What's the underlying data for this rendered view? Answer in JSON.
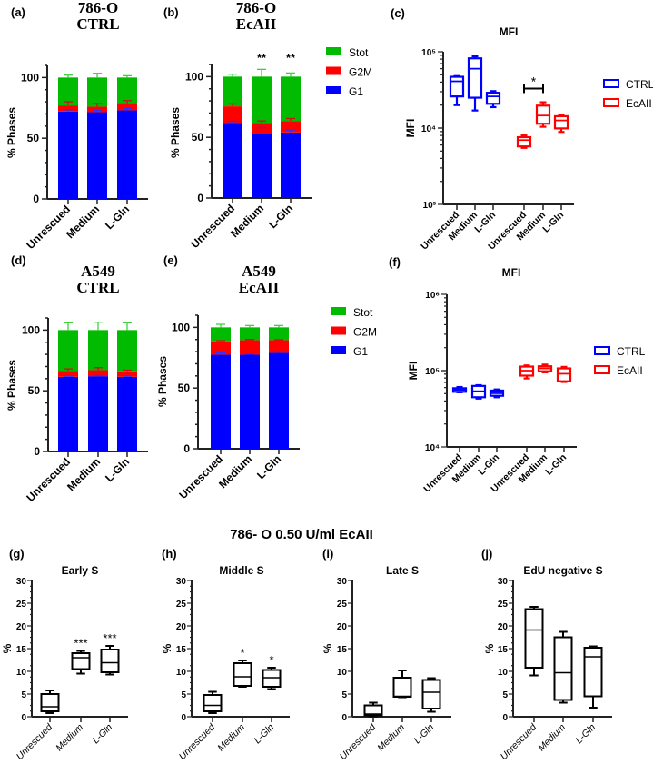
{
  "colors": {
    "G1": "#0000ff",
    "G2M": "#ff0000",
    "Stot": "#00bb00",
    "CTRL": "#0000ff",
    "EcAII": "#ff0000",
    "box": "#000000"
  },
  "legend_phases": [
    "Stot",
    "G2M",
    "G1"
  ],
  "legend_groups": [
    "CTRL",
    "EcAII"
  ],
  "bottom_title": "786- O 0.50 U/ml EcAII",
  "chart_data": [
    {
      "id": "a",
      "panel_label": "(a)",
      "type": "bar",
      "stacked": true,
      "title": [
        "786-O",
        "CTRL"
      ],
      "ylabel": "% Phases",
      "ylim": [
        0,
        110
      ],
      "yticks": [
        "0",
        "50",
        "100"
      ],
      "categories": [
        "Unrescued",
        "Medium",
        "L-Gln"
      ],
      "significance": [
        "",
        "",
        ""
      ],
      "series": [
        {
          "name": "G1",
          "values": [
            72,
            71.5,
            73
          ],
          "err": [
            1.5,
            1.5,
            1.5
          ]
        },
        {
          "name": "G2M",
          "values": [
            5,
            4.5,
            6
          ],
          "err": [
            3,
            2.5,
            2
          ]
        },
        {
          "name": "Stot",
          "values": [
            23,
            24,
            21
          ],
          "err": [
            2,
            3.5,
            1.5
          ]
        }
      ]
    },
    {
      "id": "b",
      "panel_label": "(b)",
      "type": "bar",
      "stacked": true,
      "title": [
        "786-O",
        "EcAII"
      ],
      "ylabel": "% Phases",
      "ylim": [
        0,
        110
      ],
      "yticks": [
        "0",
        "50",
        "100"
      ],
      "categories": [
        "Unrescued",
        "Medium",
        "L-Gln"
      ],
      "significance": [
        "",
        "**",
        "**"
      ],
      "series": [
        {
          "name": "G1",
          "values": [
            62,
            53,
            54
          ],
          "err": [
            1,
            5,
            2
          ]
        },
        {
          "name": "G2M",
          "values": [
            13.5,
            9,
            9.5
          ],
          "err": [
            2,
            1.5,
            2
          ]
        },
        {
          "name": "Stot",
          "values": [
            24.5,
            38,
            36.5
          ],
          "err": [
            2,
            6,
            3
          ]
        }
      ]
    },
    {
      "id": "d",
      "panel_label": "(d)",
      "type": "bar",
      "stacked": true,
      "title": [
        "A549",
        "CTRL"
      ],
      "ylabel": "% Phases",
      "ylim": [
        0,
        110
      ],
      "yticks": [
        "0",
        "50",
        "100"
      ],
      "categories": [
        "Unrescued",
        "Medium",
        "L-Gln"
      ],
      "significance": [
        "",
        "",
        ""
      ],
      "series": [
        {
          "name": "G1",
          "values": [
            61.5,
            62,
            61.5
          ],
          "err": [
            0.5,
            0.5,
            0.5
          ]
        },
        {
          "name": "G2M",
          "values": [
            5,
            5,
            4.5
          ],
          "err": [
            1.5,
            2,
            1
          ]
        },
        {
          "name": "Stot",
          "values": [
            33.5,
            33,
            34
          ],
          "err": [
            6,
            6.5,
            6
          ]
        }
      ]
    },
    {
      "id": "e",
      "panel_label": "(e)",
      "type": "bar",
      "stacked": true,
      "title": [
        "A549",
        "EcAII"
      ],
      "ylabel": "% Phases",
      "ylim": [
        0,
        110
      ],
      "yticks": [
        "0",
        "50",
        "100"
      ],
      "categories": [
        "Unrescued",
        "Medium",
        "L-Gln"
      ],
      "significance": [
        "",
        "",
        ""
      ],
      "series": [
        {
          "name": "G1",
          "values": [
            77.5,
            77.5,
            79
          ],
          "err": [
            1.5,
            0.5,
            1
          ]
        },
        {
          "name": "G2M",
          "values": [
            11,
            12,
            10.5
          ],
          "err": [
            0.5,
            0.5,
            0.3
          ]
        },
        {
          "name": "Stot",
          "values": [
            11.5,
            10.5,
            10.5
          ],
          "err": [
            2.5,
            1.5,
            1.5
          ]
        }
      ]
    },
    {
      "id": "c",
      "panel_label": "(c)",
      "type": "box",
      "title": "MFI",
      "ylabel": "MFI",
      "yscale": "log",
      "ylim": [
        1000,
        100000
      ],
      "yticks": [
        "10³",
        "10⁴",
        "10⁵"
      ],
      "categories": [
        "Unrescued",
        "Medium",
        "L-Gln",
        "Unrescued",
        "Medium",
        "L-Gln"
      ],
      "groups": [
        "CTRL",
        "CTRL",
        "CTRL",
        "EcAII",
        "EcAII",
        "EcAII"
      ],
      "boxes": [
        [
          20000,
          26000,
          41000,
          47000,
          48000
        ],
        [
          17000,
          25000,
          60000,
          82000,
          87000
        ],
        [
          18800,
          20800,
          26000,
          29000,
          30500
        ],
        [
          5500,
          5750,
          6960,
          7600,
          8000
        ],
        [
          10400,
          11400,
          14600,
          19700,
          21800
        ],
        [
          8900,
          9900,
          12600,
          14300,
          15000
        ]
      ],
      "brackets": [
        {
          "from": 3,
          "to": 4,
          "label": "*",
          "value": 33000
        }
      ],
      "significance": [
        "",
        "",
        "",
        "",
        "",
        ""
      ]
    },
    {
      "id": "f",
      "panel_label": "(f)",
      "type": "box",
      "title": "MFI",
      "ylabel": "MFI",
      "yscale": "log",
      "ylim": [
        10000,
        1000000
      ],
      "yticks": [
        "10⁴",
        "10⁵",
        "10⁶"
      ],
      "categories": [
        "Unrescued",
        "Medium",
        "L-Gln",
        "Unrescued",
        "Medium",
        "L-Gln"
      ],
      "groups": [
        "CTRL",
        "CTRL",
        "CTRL",
        "EcAII",
        "EcAII",
        "EcAII"
      ],
      "boxes": [
        [
          52000,
          52800,
          56000,
          58800,
          61000
        ],
        [
          43000,
          44800,
          53700,
          63000,
          64500
        ],
        [
          44800,
          46800,
          50500,
          54800,
          56700
        ],
        [
          79000,
          86000,
          100000,
          113000,
          117000
        ],
        [
          95000,
          98000,
          107000,
          114000,
          120000
        ],
        [
          71000,
          72500,
          91000,
          107000,
          112000
        ]
      ],
      "brackets": [],
      "significance": [
        "",
        "",
        "",
        "",
        "",
        ""
      ]
    },
    {
      "id": "g",
      "panel_label": "(g)",
      "type": "box",
      "title": "Early S",
      "ylabel": "%",
      "ylim": [
        0,
        30
      ],
      "yticks": [
        "0",
        "5",
        "10",
        "15",
        "20",
        "25",
        "30"
      ],
      "categories": [
        "Unrescued",
        "Medium",
        "L-Gln"
      ],
      "boxes": [
        [
          0.8,
          1.2,
          2.2,
          5,
          5.8
        ],
        [
          9.5,
          10.5,
          13,
          14,
          14.5
        ],
        [
          9.3,
          9.8,
          11.9,
          14.8,
          15.6
        ]
      ],
      "significance": [
        "",
        "***",
        "***"
      ],
      "brackets": []
    },
    {
      "id": "h",
      "panel_label": "(h)",
      "type": "box",
      "title": "Middle S",
      "ylabel": "%",
      "ylim": [
        0,
        30
      ],
      "yticks": [
        "0",
        "5",
        "10",
        "15",
        "20",
        "25",
        "30"
      ],
      "categories": [
        "Unrescued",
        "Medium",
        "L-Gln"
      ],
      "boxes": [
        [
          0.8,
          1.2,
          2.5,
          4.8,
          5.5
        ],
        [
          6.6,
          6.8,
          8.8,
          11.8,
          12.4
        ],
        [
          6.1,
          6.6,
          8.6,
          10.3,
          10.8
        ]
      ],
      "significance": [
        "",
        "*",
        "*"
      ],
      "brackets": []
    },
    {
      "id": "i",
      "panel_label": "(i)",
      "type": "box",
      "title": "Late S",
      "ylabel": "%",
      "ylim": [
        0,
        30
      ],
      "yticks": [
        "0",
        "5",
        "10",
        "15",
        "20",
        "25",
        "30"
      ],
      "categories": [
        "Unrescued",
        "Medium",
        "L-Gln"
      ],
      "boxes": [
        [
          0.1,
          0.3,
          0.6,
          2.5,
          3.1
        ],
        [
          4.3,
          4.4,
          4.5,
          8.6,
          10.2
        ],
        [
          1.1,
          1.8,
          5.4,
          8.1,
          8.5
        ]
      ],
      "significance": [
        "",
        "",
        ""
      ],
      "brackets": []
    },
    {
      "id": "j",
      "panel_label": "(j)",
      "type": "box",
      "title": "EdU negative S",
      "ylabel": "%",
      "ylim": [
        0,
        30
      ],
      "yticks": [
        "0",
        "5",
        "10",
        "15",
        "20",
        "25",
        "30"
      ],
      "categories": [
        "Unrescued",
        "Medium",
        "L-Gln"
      ],
      "boxes": [
        [
          9.1,
          10.8,
          19.1,
          23.7,
          24.2
        ],
        [
          3.1,
          3.7,
          9.7,
          17.5,
          18.7
        ],
        [
          2.0,
          4.5,
          13.2,
          15.2,
          15.5
        ]
      ],
      "significance": [
        "",
        "",
        ""
      ],
      "brackets": []
    }
  ]
}
